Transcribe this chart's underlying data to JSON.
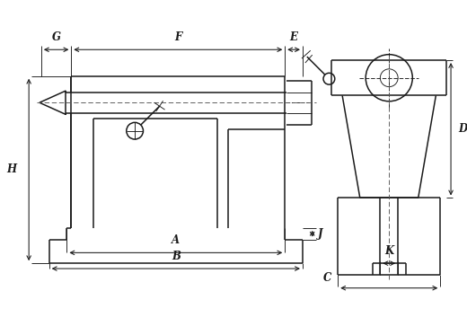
{
  "bg_color": "#ffffff",
  "line_color": "#1a1a1a",
  "lw": 1.1,
  "tlw": 0.65,
  "fig_w": 5.2,
  "fig_h": 3.73,
  "xlim": [
    0,
    5.2
  ],
  "ylim": [
    0,
    3.73
  ]
}
